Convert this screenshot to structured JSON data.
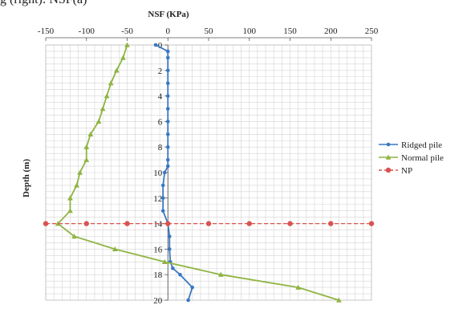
{
  "caption_fragment": "g (right): NSF(a)",
  "chart_data": {
    "type": "line",
    "title": "",
    "xlabel": "NSF (KPa)",
    "ylabel": "Depth (m)",
    "xlim": [
      -150,
      250
    ],
    "ylim": [
      0,
      20
    ],
    "x_axis_position": "top",
    "y_axis_at_x": 0,
    "y_inverted": true,
    "grid": true,
    "x_ticks": [
      -150,
      -100,
      -50,
      0,
      50,
      100,
      150,
      200,
      250
    ],
    "y_ticks": [
      0,
      2,
      4,
      6,
      8,
      10,
      12,
      14,
      16,
      18,
      20
    ],
    "legend_position": "right",
    "series": [
      {
        "name": "Ridged pile",
        "color": "#3a78c2",
        "marker": "circle",
        "line_style": "solid",
        "points": [
          [
            -15,
            0
          ],
          [
            0,
            0.5
          ],
          [
            0,
            1
          ],
          [
            0,
            2
          ],
          [
            0,
            3
          ],
          [
            0,
            4
          ],
          [
            0,
            5
          ],
          [
            0,
            6
          ],
          [
            0,
            7
          ],
          [
            0,
            8
          ],
          [
            0,
            9
          ],
          [
            0,
            9.5
          ],
          [
            -4,
            10
          ],
          [
            -6,
            11
          ],
          [
            -6,
            12
          ],
          [
            -6,
            13
          ],
          [
            0,
            14
          ],
          [
            2,
            15
          ],
          [
            2,
            16
          ],
          [
            3,
            17
          ],
          [
            6,
            17.5
          ],
          [
            15,
            18
          ],
          [
            30,
            19
          ],
          [
            25,
            20
          ]
        ]
      },
      {
        "name": "Normal pile",
        "color": "#8fb443",
        "marker": "triangle",
        "line_style": "solid",
        "points": [
          [
            -50,
            0
          ],
          [
            -55,
            1
          ],
          [
            -63,
            2
          ],
          [
            -70,
            3
          ],
          [
            -75,
            4
          ],
          [
            -80,
            5
          ],
          [
            -85,
            6
          ],
          [
            -95,
            7
          ],
          [
            -100,
            8
          ],
          [
            -100,
            9
          ],
          [
            -108,
            10
          ],
          [
            -112,
            11
          ],
          [
            -120,
            12
          ],
          [
            -120,
            13
          ],
          [
            -135,
            14
          ],
          [
            -115,
            15
          ],
          [
            -65,
            16
          ],
          [
            -4,
            17
          ],
          [
            65,
            18
          ],
          [
            160,
            19
          ],
          [
            210,
            20
          ]
        ]
      },
      {
        "name": "NP",
        "color": "#d9534f",
        "marker": "circle",
        "line_style": "dashed",
        "points": [
          [
            -150,
            14
          ],
          [
            -100,
            14
          ],
          [
            -50,
            14
          ],
          [
            0,
            14
          ],
          [
            50,
            14
          ],
          [
            100,
            14
          ],
          [
            150,
            14
          ],
          [
            200,
            14
          ],
          [
            250,
            14
          ]
        ]
      }
    ]
  }
}
